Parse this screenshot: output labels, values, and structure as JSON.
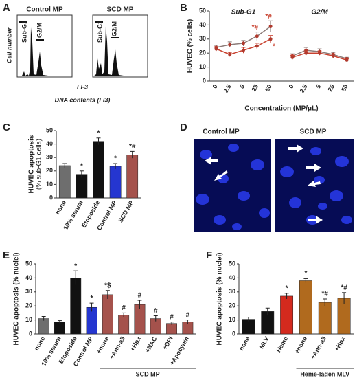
{
  "panel_a": {
    "letter": "A",
    "titles": [
      "Control MP",
      "SCD MP"
    ],
    "gates": [
      "Sub-G1",
      "G2/M"
    ],
    "ylabel": "Cell number",
    "xlabel": "Fl-3",
    "caption": "DNA contents (Fl3)"
  },
  "panel_d": {
    "letter": "D",
    "titles": [
      "Control MP",
      "SCD MP"
    ]
  },
  "chart_data": [
    {
      "type": "line",
      "letter": "B",
      "ylabel": "HUVEC (% cells)",
      "xlabel": "Concentration (MP/μL)",
      "ylim": [
        0,
        50
      ],
      "yticks": [
        0,
        10,
        20,
        30,
        40,
        50
      ],
      "groups": [
        {
          "name": "Sub-G1",
          "categories": [
            "0",
            "2.5",
            "5",
            "25",
            "50"
          ],
          "series": [
            {
              "color": "#8c7b78",
              "values": [
                24,
                26,
                27,
                32,
                39
              ],
              "errors": [
                1.5,
                2,
                2,
                3,
                4
              ],
              "flags": [
                null,
                null,
                null,
                "*#",
                "*#"
              ]
            },
            {
              "color": "#c8402e",
              "values": [
                23,
                19,
                22,
                25,
                30
              ],
              "errors": [
                1.5,
                1.5,
                2,
                2,
                2.5
              ],
              "flags": [
                null,
                null,
                null,
                null,
                "*"
              ]
            }
          ]
        },
        {
          "name": "G2/M",
          "categories": [
            "0",
            "2.5",
            "5",
            "25",
            "50"
          ],
          "series": [
            {
              "color": "#8c7b78",
              "values": [
                18,
                22,
                21,
                19,
                16
              ],
              "errors": [
                1.5,
                2,
                2,
                1.5,
                1
              ]
            },
            {
              "color": "#c8402e",
              "values": [
                17,
                20,
                20,
                18,
                15
              ],
              "errors": [
                1.5,
                1.5,
                1.5,
                1.5,
                1
              ]
            }
          ]
        }
      ]
    },
    {
      "type": "bar",
      "letter": "C",
      "ylabel": "HUVEC apoptosis",
      "ylabel2": "(% sub-G1 cells)",
      "ylim": [
        0,
        50
      ],
      "yticks": [
        0,
        10,
        20,
        30,
        40,
        50
      ],
      "categories": [
        "none",
        "10% serum",
        "Etoposide",
        "Control MP",
        "SCD MP"
      ],
      "values": [
        24,
        17.5,
        42,
        23.5,
        32
      ],
      "errors": [
        1.5,
        2.5,
        2.5,
        2,
        2.5
      ],
      "flags": [
        null,
        "*",
        "*",
        "*",
        "*#"
      ],
      "colors": [
        "#6e6e6e",
        "#111111",
        "#111111",
        "#2536d0",
        "#a5524c"
      ]
    },
    {
      "type": "bar",
      "letter": "E",
      "ylabel": "HUVEC apoptosis (% nuclei)",
      "group_label": "SCD MP",
      "ylim": [
        0,
        50
      ],
      "yticks": [
        0,
        10,
        20,
        30,
        40,
        50
      ],
      "categories": [
        "none",
        "10% serum",
        "Etoposide",
        "Control MP",
        "+none",
        "+Ann-a5",
        "+Hpx",
        "+NAC",
        "+DPI",
        "+Apocynin"
      ],
      "values": [
        11,
        8.5,
        40,
        19,
        28,
        13.5,
        21,
        11,
        7.5,
        8.5
      ],
      "errors": [
        1.5,
        1,
        5,
        3,
        3,
        1.5,
        3,
        2,
        1,
        1.5
      ],
      "flags": [
        null,
        null,
        "*",
        "*",
        "*$",
        "#",
        "#",
        "#",
        "#",
        "#"
      ],
      "colors": [
        "#6e6e6e",
        "#111111",
        "#111111",
        "#2536d0",
        "#a5524c",
        "#a5524c",
        "#a5524c",
        "#a5524c",
        "#a5524c",
        "#a5524c"
      ]
    },
    {
      "type": "bar",
      "letter": "F",
      "ylabel": "HUVEC apoptosis (% nuclei)",
      "group_label": "Heme-laden MLV",
      "ylim": [
        0,
        50
      ],
      "yticks": [
        0,
        10,
        20,
        30,
        40,
        50
      ],
      "categories": [
        "none",
        "MLV",
        "Heme",
        "+none",
        "+Ann-a5",
        "+Hpx"
      ],
      "values": [
        10.5,
        16,
        27,
        38,
        22.5,
        25.5
      ],
      "errors": [
        1.5,
        2.5,
        2,
        1.5,
        2.5,
        4
      ],
      "flags": [
        null,
        null,
        "*",
        "*",
        "*#",
        "*#"
      ],
      "colors": [
        "#111111",
        "#111111",
        "#d42a1e",
        "#b06a1e",
        "#b06a1e",
        "#b06a1e"
      ]
    }
  ]
}
